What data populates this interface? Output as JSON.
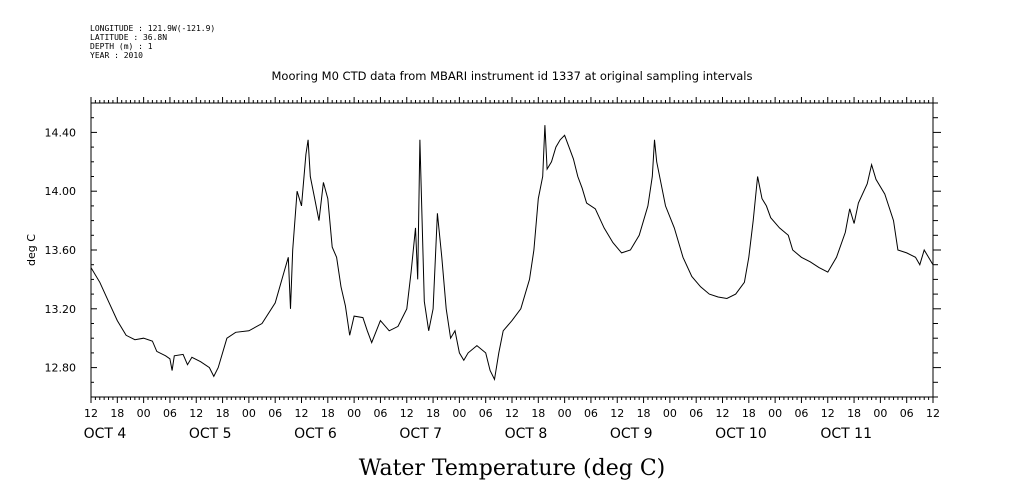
{
  "header": {
    "meta_lines": [
      "LONGITUDE : 121.9W(-121.9)",
      "LATITUDE : 36.8N",
      "DEPTH (m) : 1",
      "YEAR : 2010"
    ],
    "title": "Mooring M0 CTD data from MBARI instrument id 1337 at original sampling intervals"
  },
  "chart_data": {
    "type": "line",
    "title": "Mooring M0 CTD data from MBARI instrument id 1337 at original sampling intervals",
    "xlabel": "Water Temperature (deg C)",
    "ylabel": "deg C",
    "ylim": [
      12.6,
      14.6
    ],
    "yticks": [
      12.8,
      13.2,
      13.6,
      14.0,
      14.4
    ],
    "ytick_labels": [
      "12.80",
      "13.20",
      "13.60",
      "14.00",
      "14.40"
    ],
    "xlim": [
      "2010-10-03T12:00",
      "2010-10-11T12:00"
    ],
    "x_hour_labels": [
      "12",
      "18",
      "00",
      "06",
      "12",
      "18",
      "00",
      "06",
      "12",
      "18",
      "00",
      "06",
      "12",
      "18",
      "00",
      "06",
      "12",
      "18",
      "00",
      "06",
      "12",
      "18",
      "00",
      "06",
      "12",
      "18",
      "00",
      "06",
      "12",
      "18",
      "00",
      "06",
      "12"
    ],
    "day_labels": [
      {
        "date": "2010-10-04",
        "label": "OCT  4"
      },
      {
        "date": "2010-10-05",
        "label": "OCT  5"
      },
      {
        "date": "2010-10-06",
        "label": "OCT  6"
      },
      {
        "date": "2010-10-07",
        "label": "OCT  7"
      },
      {
        "date": "2010-10-08",
        "label": "OCT  8"
      },
      {
        "date": "2010-10-09",
        "label": "OCT  9"
      },
      {
        "date": "2010-10-10",
        "label": "OCT 10"
      },
      {
        "date": "2010-10-11",
        "label": "OCT 11"
      }
    ],
    "grid": false,
    "series": [
      {
        "line_color": "#000000",
        "points": [
          [
            "2010-10-03T12:00",
            13.48
          ],
          [
            "2010-10-03T14:00",
            13.38
          ],
          [
            "2010-10-03T16:00",
            13.25
          ],
          [
            "2010-10-03T18:00",
            13.12
          ],
          [
            "2010-10-03T20:00",
            13.02
          ],
          [
            "2010-10-03T22:00",
            12.99
          ],
          [
            "2010-10-04T00:00",
            13.0
          ],
          [
            "2010-10-04T02:00",
            12.98
          ],
          [
            "2010-10-04T03:00",
            12.91
          ],
          [
            "2010-10-04T05:00",
            12.88
          ],
          [
            "2010-10-04T06:00",
            12.86
          ],
          [
            "2010-10-04T06:30",
            12.78
          ],
          [
            "2010-10-04T07:00",
            12.88
          ],
          [
            "2010-10-04T09:00",
            12.89
          ],
          [
            "2010-10-04T10:00",
            12.82
          ],
          [
            "2010-10-04T11:00",
            12.87
          ],
          [
            "2010-10-04T13:00",
            12.84
          ],
          [
            "2010-10-04T15:00",
            12.8
          ],
          [
            "2010-10-04T16:00",
            12.74
          ],
          [
            "2010-10-04T17:00",
            12.8
          ],
          [
            "2010-10-04T19:00",
            13.0
          ],
          [
            "2010-10-04T21:00",
            13.04
          ],
          [
            "2010-10-05T00:00",
            13.05
          ],
          [
            "2010-10-05T03:00",
            13.1
          ],
          [
            "2010-10-05T06:00",
            13.24
          ],
          [
            "2010-10-05T08:00",
            13.45
          ],
          [
            "2010-10-05T09:00",
            13.55
          ],
          [
            "2010-10-05T09:30",
            13.2
          ],
          [
            "2010-10-05T10:00",
            13.6
          ],
          [
            "2010-10-05T11:00",
            14.0
          ],
          [
            "2010-10-05T12:00",
            13.9
          ],
          [
            "2010-10-05T13:00",
            14.25
          ],
          [
            "2010-10-05T13:30",
            14.35
          ],
          [
            "2010-10-05T14:00",
            14.1
          ],
          [
            "2010-10-05T15:00",
            13.95
          ],
          [
            "2010-10-05T16:00",
            13.8
          ],
          [
            "2010-10-05T17:00",
            14.06
          ],
          [
            "2010-10-05T18:00",
            13.95
          ],
          [
            "2010-10-05T19:00",
            13.62
          ],
          [
            "2010-10-05T20:00",
            13.55
          ],
          [
            "2010-10-05T21:00",
            13.35
          ],
          [
            "2010-10-05T22:00",
            13.22
          ],
          [
            "2010-10-05T23:00",
            13.02
          ],
          [
            "2010-10-06T00:00",
            13.15
          ],
          [
            "2010-10-06T02:00",
            13.14
          ],
          [
            "2010-10-06T03:00",
            13.05
          ],
          [
            "2010-10-06T04:00",
            12.97
          ],
          [
            "2010-10-06T06:00",
            13.12
          ],
          [
            "2010-10-06T08:00",
            13.05
          ],
          [
            "2010-10-06T10:00",
            13.08
          ],
          [
            "2010-10-06T12:00",
            13.2
          ],
          [
            "2010-10-06T13:00",
            13.45
          ],
          [
            "2010-10-06T14:00",
            13.75
          ],
          [
            "2010-10-06T14:30",
            13.4
          ],
          [
            "2010-10-06T15:00",
            14.35
          ],
          [
            "2010-10-06T15:30",
            13.8
          ],
          [
            "2010-10-06T16:00",
            13.25
          ],
          [
            "2010-10-06T17:00",
            13.05
          ],
          [
            "2010-10-06T18:00",
            13.2
          ],
          [
            "2010-10-06T19:00",
            13.85
          ],
          [
            "2010-10-06T20:00",
            13.55
          ],
          [
            "2010-10-06T21:00",
            13.2
          ],
          [
            "2010-10-06T22:00",
            13.0
          ],
          [
            "2010-10-06T23:00",
            13.05
          ],
          [
            "2010-10-07T00:00",
            12.9
          ],
          [
            "2010-10-07T01:00",
            12.85
          ],
          [
            "2010-10-07T02:00",
            12.9
          ],
          [
            "2010-10-07T04:00",
            12.95
          ],
          [
            "2010-10-07T06:00",
            12.9
          ],
          [
            "2010-10-07T07:00",
            12.78
          ],
          [
            "2010-10-07T08:00",
            12.72
          ],
          [
            "2010-10-07T09:00",
            12.9
          ],
          [
            "2010-10-07T10:00",
            13.05
          ],
          [
            "2010-10-07T12:00",
            13.12
          ],
          [
            "2010-10-07T14:00",
            13.2
          ],
          [
            "2010-10-07T16:00",
            13.4
          ],
          [
            "2010-10-07T17:00",
            13.6
          ],
          [
            "2010-10-07T18:00",
            13.95
          ],
          [
            "2010-10-07T19:00",
            14.1
          ],
          [
            "2010-10-07T19:30",
            14.45
          ],
          [
            "2010-10-07T20:00",
            14.15
          ],
          [
            "2010-10-07T21:00",
            14.2
          ],
          [
            "2010-10-07T22:00",
            14.3
          ],
          [
            "2010-10-07T23:00",
            14.35
          ],
          [
            "2010-10-08T00:00",
            14.38
          ],
          [
            "2010-10-08T01:00",
            14.3
          ],
          [
            "2010-10-08T02:00",
            14.22
          ],
          [
            "2010-10-08T03:00",
            14.1
          ],
          [
            "2010-10-08T04:00",
            14.02
          ],
          [
            "2010-10-08T05:00",
            13.92
          ],
          [
            "2010-10-08T07:00",
            13.88
          ],
          [
            "2010-10-08T09:00",
            13.75
          ],
          [
            "2010-10-08T11:00",
            13.65
          ],
          [
            "2010-10-08T13:00",
            13.58
          ],
          [
            "2010-10-08T15:00",
            13.6
          ],
          [
            "2010-10-08T17:00",
            13.7
          ],
          [
            "2010-10-08T19:00",
            13.9
          ],
          [
            "2010-10-08T20:00",
            14.1
          ],
          [
            "2010-10-08T20:30",
            14.35
          ],
          [
            "2010-10-08T21:00",
            14.2
          ],
          [
            "2010-10-08T22:00",
            14.05
          ],
          [
            "2010-10-08T23:00",
            13.9
          ],
          [
            "2010-10-09T01:00",
            13.75
          ],
          [
            "2010-10-09T03:00",
            13.55
          ],
          [
            "2010-10-09T05:00",
            13.42
          ],
          [
            "2010-10-09T07:00",
            13.35
          ],
          [
            "2010-10-09T09:00",
            13.3
          ],
          [
            "2010-10-09T11:00",
            13.28
          ],
          [
            "2010-10-09T13:00",
            13.27
          ],
          [
            "2010-10-09T15:00",
            13.3
          ],
          [
            "2010-10-09T17:00",
            13.38
          ],
          [
            "2010-10-09T18:00",
            13.55
          ],
          [
            "2010-10-09T19:00",
            13.8
          ],
          [
            "2010-10-09T20:00",
            14.1
          ],
          [
            "2010-10-09T21:00",
            13.95
          ],
          [
            "2010-10-09T22:00",
            13.9
          ],
          [
            "2010-10-09T23:00",
            13.82
          ],
          [
            "2010-10-10T01:00",
            13.75
          ],
          [
            "2010-10-10T03:00",
            13.7
          ],
          [
            "2010-10-10T04:00",
            13.6
          ],
          [
            "2010-10-10T06:00",
            13.55
          ],
          [
            "2010-10-10T08:00",
            13.52
          ],
          [
            "2010-10-10T10:00",
            13.48
          ],
          [
            "2010-10-10T12:00",
            13.45
          ],
          [
            "2010-10-10T14:00",
            13.55
          ],
          [
            "2010-10-10T16:00",
            13.72
          ],
          [
            "2010-10-10T17:00",
            13.88
          ],
          [
            "2010-10-10T18:00",
            13.78
          ],
          [
            "2010-10-10T19:00",
            13.92
          ],
          [
            "2010-10-10T21:00",
            14.05
          ],
          [
            "2010-10-10T22:00",
            14.18
          ],
          [
            "2010-10-10T23:00",
            14.08
          ],
          [
            "2010-10-11T01:00",
            13.98
          ],
          [
            "2010-10-11T03:00",
            13.8
          ],
          [
            "2010-10-11T04:00",
            13.6
          ],
          [
            "2010-10-11T06:00",
            13.58
          ],
          [
            "2010-10-11T08:00",
            13.55
          ],
          [
            "2010-10-11T09:00",
            13.5
          ],
          [
            "2010-10-11T10:00",
            13.6
          ],
          [
            "2010-10-11T12:00",
            13.5
          ]
        ]
      }
    ]
  }
}
